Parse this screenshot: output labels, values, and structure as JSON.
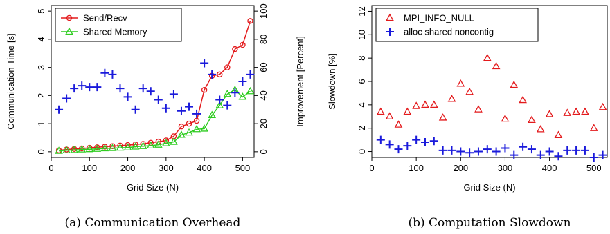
{
  "chart_data": [
    {
      "type": "line",
      "caption": "(a) Communication Overhead",
      "xlabel": "Grid Size (N)",
      "ylabel": "Communication Time [s]",
      "ylabel_right": "Improvement [Percent]",
      "xlim": [
        0,
        530
      ],
      "ylim": [
        -0.2,
        5.2
      ],
      "ylim_right": [
        -4,
        104
      ],
      "xticks": [
        "0",
        "100",
        "200",
        "300",
        "400",
        "500"
      ],
      "yticks": [
        "0",
        "1",
        "2",
        "3",
        "4",
        "5"
      ],
      "yticks_right": [
        "0",
        "20",
        "40",
        "60",
        "80",
        "100"
      ],
      "grid": false,
      "legend_position": "top-left",
      "series": [
        {
          "name": "Send/Recv",
          "color": "#e31a1c",
          "marker": "circle",
          "axis": "left",
          "x": [
            20,
            40,
            60,
            80,
            100,
            120,
            140,
            160,
            180,
            200,
            220,
            240,
            260,
            280,
            300,
            320,
            340,
            360,
            380,
            400,
            420,
            440,
            460,
            480,
            500,
            520
          ],
          "values": [
            0.05,
            0.08,
            0.1,
            0.12,
            0.14,
            0.16,
            0.18,
            0.2,
            0.22,
            0.24,
            0.26,
            0.28,
            0.32,
            0.36,
            0.4,
            0.55,
            0.9,
            1.0,
            1.1,
            2.2,
            2.7,
            2.75,
            3.0,
            3.65,
            3.8,
            4.65
          ]
        },
        {
          "name": "Shared Memory",
          "color": "#2ecc20",
          "marker": "triangle",
          "axis": "left",
          "x": [
            20,
            40,
            60,
            80,
            100,
            120,
            140,
            160,
            180,
            200,
            220,
            240,
            260,
            280,
            300,
            320,
            340,
            360,
            380,
            400,
            420,
            440,
            460,
            480,
            500,
            520
          ],
          "values": [
            0.03,
            0.05,
            0.06,
            0.08,
            0.09,
            0.1,
            0.12,
            0.13,
            0.14,
            0.15,
            0.18,
            0.2,
            0.22,
            0.25,
            0.3,
            0.35,
            0.6,
            0.68,
            0.8,
            0.82,
            1.3,
            1.65,
            2.05,
            2.2,
            1.95,
            2.15
          ]
        },
        {
          "name": "Improvement",
          "color": "#1a1adb",
          "marker": "plus",
          "axis": "right",
          "x": [
            20,
            40,
            60,
            80,
            100,
            120,
            140,
            160,
            180,
            200,
            220,
            240,
            260,
            280,
            300,
            320,
            340,
            360,
            380,
            400,
            420,
            440,
            460,
            480,
            500,
            520
          ],
          "values": [
            30,
            38,
            45,
            47,
            46,
            46,
            56,
            55,
            45,
            39,
            30,
            45,
            43,
            37,
            31,
            41,
            29,
            32,
            27,
            63,
            55,
            37,
            33,
            42,
            50,
            55
          ]
        }
      ]
    },
    {
      "type": "scatter",
      "caption": "(b) Computation Slowdown",
      "xlabel": "Grid Size (N)",
      "ylabel": "Slowdown [%]",
      "xlim": [
        0,
        530
      ],
      "ylim": [
        -0.5,
        12.5
      ],
      "xticks": [
        "0",
        "100",
        "200",
        "300",
        "400",
        "500"
      ],
      "yticks": [
        "0",
        "2",
        "4",
        "6",
        "8",
        "10",
        "12"
      ],
      "grid": false,
      "legend_position": "top-left",
      "series": [
        {
          "name": "MPI_INFO_NULL",
          "color": "#e31a1c",
          "marker": "triangle",
          "x": [
            20,
            40,
            60,
            80,
            100,
            120,
            140,
            160,
            180,
            200,
            220,
            240,
            260,
            280,
            300,
            320,
            340,
            360,
            380,
            400,
            420,
            440,
            460,
            480,
            500,
            520
          ],
          "values": [
            3.4,
            3.0,
            2.3,
            3.4,
            3.9,
            4.0,
            4.0,
            2.9,
            4.5,
            5.8,
            5.1,
            3.6,
            8.0,
            7.3,
            2.8,
            5.7,
            4.4,
            2.7,
            1.9,
            3.2,
            1.4,
            3.3,
            3.4,
            3.4,
            2.0,
            3.8
          ]
        },
        {
          "name": "alloc shared noncontig",
          "color": "#1a1adb",
          "marker": "plus",
          "x": [
            20,
            40,
            60,
            80,
            100,
            120,
            140,
            160,
            180,
            200,
            220,
            240,
            260,
            280,
            300,
            320,
            340,
            360,
            380,
            400,
            420,
            440,
            460,
            480,
            500,
            520
          ],
          "values": [
            1.0,
            0.6,
            0.2,
            0.5,
            1.0,
            0.8,
            0.9,
            0.1,
            0.1,
            0.0,
            -0.1,
            0.0,
            0.2,
            0.0,
            0.3,
            -0.3,
            0.4,
            0.2,
            -0.3,
            0.0,
            -0.4,
            0.1,
            0.1,
            0.1,
            -0.5,
            -0.3
          ]
        }
      ]
    }
  ]
}
